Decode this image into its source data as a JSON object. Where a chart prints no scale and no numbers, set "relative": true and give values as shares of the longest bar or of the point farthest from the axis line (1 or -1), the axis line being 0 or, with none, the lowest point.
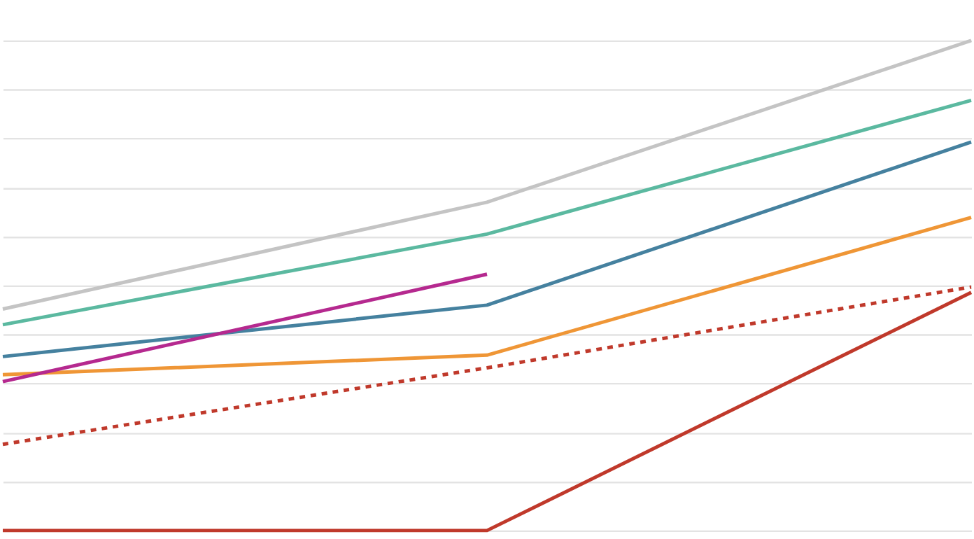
{
  "chart_data": {
    "type": "line",
    "relative": true,
    "grid": "y",
    "categories": [
      null,
      null,
      null
    ],
    "series": [
      {
        "color": "#c4c4c4",
        "values": [
          0.452,
          0.67,
          1.0
        ]
      },
      {
        "color": "#5bb9a0",
        "values": [
          0.42,
          0.605,
          0.878
        ]
      },
      {
        "color": "#45819f",
        "values": [
          0.355,
          0.46,
          0.793
        ]
      },
      {
        "color": "#ef9636",
        "values": [
          0.318,
          0.358,
          0.639
        ]
      },
      {
        "color": "#b5298f",
        "values": [
          0.304,
          0.523,
          null
        ]
      },
      {
        "color": "#c0392b",
        "line_style": "dashed",
        "values": [
          0.176,
          0.332,
          0.497
        ]
      },
      {
        "color": "#c0392b",
        "values": [
          0,
          0,
          0.486
        ]
      }
    ]
  }
}
